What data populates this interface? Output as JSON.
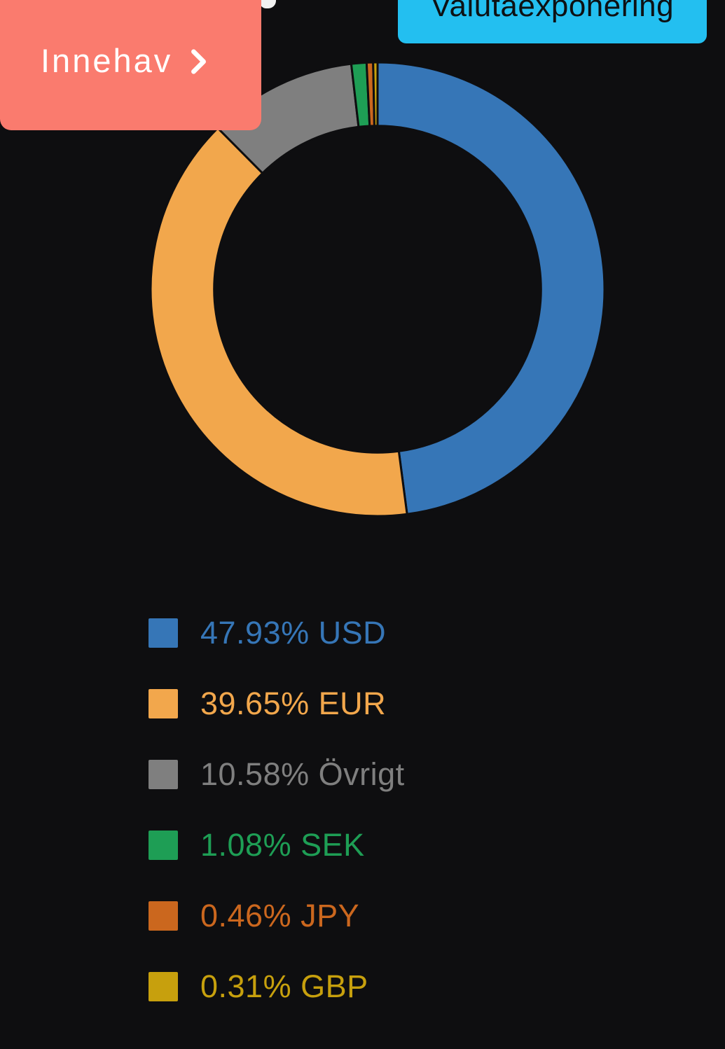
{
  "page": {
    "background": "#0e0e10"
  },
  "innehav_button": {
    "label": "Innehav",
    "color": "#fa7b6e",
    "text_color": "#ffffff",
    "chevron_icon": "chevron-right"
  },
  "chart_badge": {
    "label": "Valutaexponering",
    "color": "#23bff0",
    "text_color": "#0d1114"
  },
  "decor": {
    "cutoff_heading_fragment_color": "#f2f2f2"
  },
  "chart_data": {
    "type": "pie",
    "variant": "donut",
    "title": "Valutaexponering",
    "start_angle_deg": 0,
    "direction": "clockwise",
    "inner_radius_ratio": 0.72,
    "border_color": "#0e0e10",
    "legend_position": "bottom-left",
    "slices": [
      {
        "label": "USD",
        "value_pct": 47.93,
        "color": "#3676b7",
        "legend_text": "47.93% USD"
      },
      {
        "label": "EUR",
        "value_pct": 39.65,
        "color": "#f2a74c",
        "legend_text": "39.65% EUR"
      },
      {
        "label": "Övrigt",
        "value_pct": 10.58,
        "color": "#7f7f7f",
        "legend_text": "10.58% Övrigt"
      },
      {
        "label": "SEK",
        "value_pct": 1.08,
        "color": "#1e9e55",
        "legend_text": "1.08% SEK"
      },
      {
        "label": "JPY",
        "value_pct": 0.46,
        "color": "#cb671e",
        "legend_text": "0.46% JPY"
      },
      {
        "label": "GBP",
        "value_pct": 0.31,
        "color": "#c7a00d",
        "legend_text": "0.31% GBP"
      }
    ]
  }
}
